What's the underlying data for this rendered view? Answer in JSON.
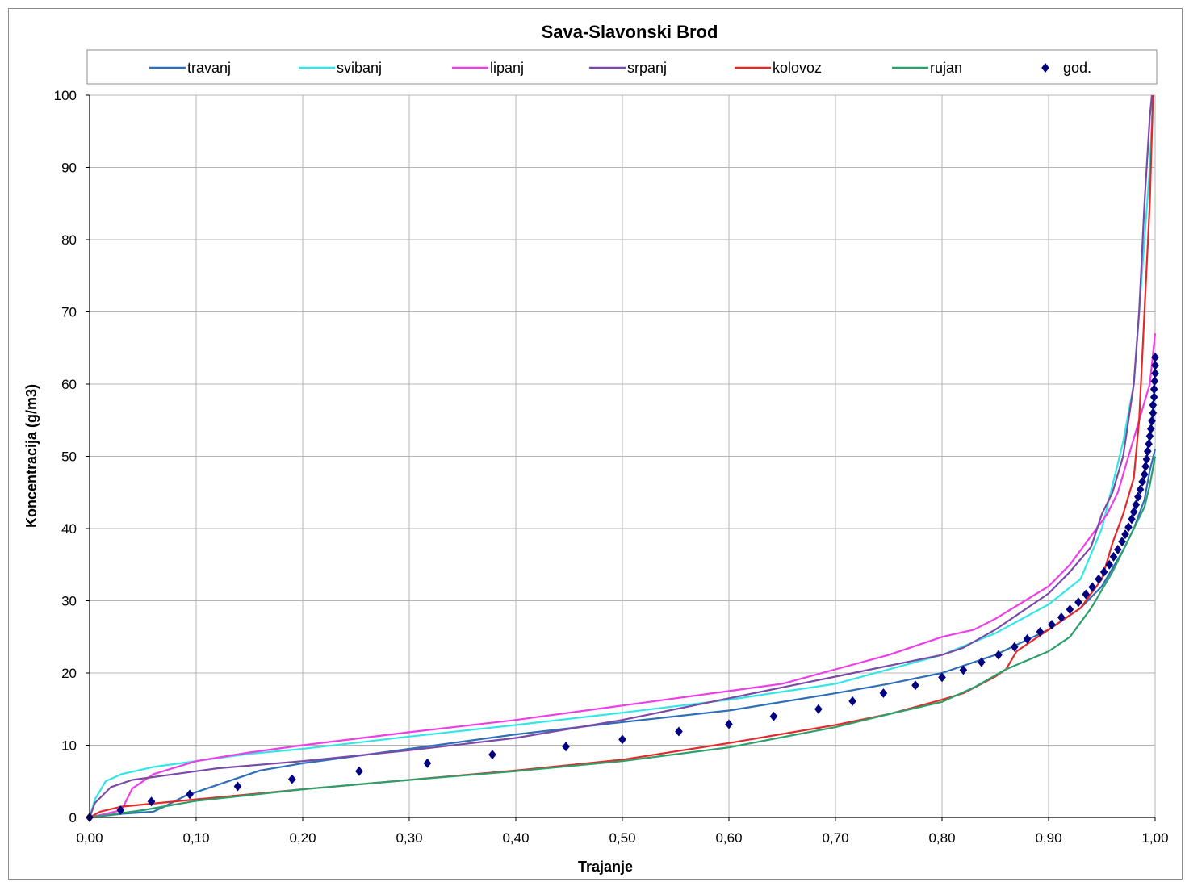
{
  "chart_data": {
    "type": "line",
    "title": "Sava-Slavonski Brod",
    "xlabel": "Trajanje",
    "ylabel": "Koncentracija (g/m3)",
    "xlim": [
      0,
      1
    ],
    "ylim": [
      0,
      100
    ],
    "x_ticks": [
      "0,00",
      "0,10",
      "0,20",
      "0,30",
      "0,40",
      "0,50",
      "0,60",
      "0,70",
      "0,80",
      "0,90",
      "1,00"
    ],
    "y_ticks": [
      "0",
      "10",
      "20",
      "30",
      "40",
      "50",
      "60",
      "70",
      "80",
      "90",
      "100"
    ],
    "grid": true,
    "legend_position": "top",
    "series": [
      {
        "name": "travanj",
        "color": "#2f6fb7",
        "marker": "line",
        "points": [
          [
            0,
            0
          ],
          [
            0.03,
            0.5
          ],
          [
            0.06,
            0.8
          ],
          [
            0.07,
            1.5
          ],
          [
            0.09,
            3
          ],
          [
            0.12,
            4.5
          ],
          [
            0.16,
            6.5
          ],
          [
            0.2,
            7.5
          ],
          [
            0.3,
            9.5
          ],
          [
            0.4,
            11.5
          ],
          [
            0.5,
            13.2
          ],
          [
            0.6,
            14.8
          ],
          [
            0.7,
            17.2
          ],
          [
            0.75,
            18.5
          ],
          [
            0.8,
            20
          ],
          [
            0.85,
            22.5
          ],
          [
            0.9,
            26
          ],
          [
            0.93,
            29
          ],
          [
            0.95,
            32
          ],
          [
            0.97,
            37
          ],
          [
            0.98,
            40
          ],
          [
            0.99,
            44
          ],
          [
            0.995,
            48
          ],
          [
            1.0,
            51
          ]
        ]
      },
      {
        "name": "svibanj",
        "color": "#33e6e6",
        "marker": "line",
        "points": [
          [
            0,
            0
          ],
          [
            0.005,
            2.5
          ],
          [
            0.015,
            5
          ],
          [
            0.03,
            6
          ],
          [
            0.06,
            7
          ],
          [
            0.1,
            7.8
          ],
          [
            0.15,
            8.8
          ],
          [
            0.2,
            9.5
          ],
          [
            0.3,
            11.2
          ],
          [
            0.4,
            12.8
          ],
          [
            0.5,
            14.5
          ],
          [
            0.6,
            16.3
          ],
          [
            0.7,
            18.5
          ],
          [
            0.8,
            22.5
          ],
          [
            0.85,
            25.5
          ],
          [
            0.9,
            29.5
          ],
          [
            0.93,
            33
          ],
          [
            0.95,
            40
          ],
          [
            0.96,
            46
          ],
          [
            0.97,
            52
          ],
          [
            0.98,
            60
          ],
          [
            0.985,
            70
          ],
          [
            0.99,
            80
          ],
          [
            0.995,
            90
          ],
          [
            0.998,
            100
          ]
        ]
      },
      {
        "name": "lipanj",
        "color": "#ee3ee6",
        "marker": "line",
        "points": [
          [
            0,
            0
          ],
          [
            0.03,
            1
          ],
          [
            0.04,
            4
          ],
          [
            0.06,
            6
          ],
          [
            0.1,
            7.8
          ],
          [
            0.15,
            9
          ],
          [
            0.2,
            10
          ],
          [
            0.3,
            11.8
          ],
          [
            0.4,
            13.5
          ],
          [
            0.5,
            15.5
          ],
          [
            0.6,
            17.5
          ],
          [
            0.65,
            18.5
          ],
          [
            0.7,
            20.5
          ],
          [
            0.75,
            22.5
          ],
          [
            0.8,
            25
          ],
          [
            0.83,
            26
          ],
          [
            0.85,
            27.5
          ],
          [
            0.9,
            32
          ],
          [
            0.92,
            35
          ],
          [
            0.94,
            39
          ],
          [
            0.955,
            42
          ],
          [
            0.965,
            45
          ],
          [
            0.975,
            50
          ],
          [
            0.985,
            55
          ],
          [
            0.995,
            60
          ],
          [
            1.0,
            67
          ]
        ]
      },
      {
        "name": "srpanj",
        "color": "#7a4aa6",
        "marker": "line",
        "points": [
          [
            0,
            0
          ],
          [
            0.005,
            2
          ],
          [
            0.02,
            4.2
          ],
          [
            0.04,
            5.2
          ],
          [
            0.08,
            6
          ],
          [
            0.12,
            6.8
          ],
          [
            0.2,
            7.8
          ],
          [
            0.3,
            9.3
          ],
          [
            0.4,
            11
          ],
          [
            0.5,
            13.5
          ],
          [
            0.6,
            16.5
          ],
          [
            0.7,
            19.5
          ],
          [
            0.8,
            22.5
          ],
          [
            0.82,
            23.5
          ],
          [
            0.85,
            26
          ],
          [
            0.9,
            31
          ],
          [
            0.92,
            34
          ],
          [
            0.94,
            37.5
          ],
          [
            0.95,
            42
          ],
          [
            0.96,
            45
          ],
          [
            0.97,
            50
          ],
          [
            0.98,
            60
          ],
          [
            0.985,
            70
          ],
          [
            0.99,
            85
          ],
          [
            0.995,
            97
          ],
          [
            0.997,
            100
          ]
        ]
      },
      {
        "name": "kolovoz",
        "color": "#e32a2a",
        "marker": "line",
        "points": [
          [
            0,
            0
          ],
          [
            0.01,
            0.8
          ],
          [
            0.03,
            1.5
          ],
          [
            0.1,
            2.5
          ],
          [
            0.2,
            3.9
          ],
          [
            0.3,
            5.2
          ],
          [
            0.4,
            6.5
          ],
          [
            0.5,
            8
          ],
          [
            0.6,
            10.3
          ],
          [
            0.7,
            12.8
          ],
          [
            0.75,
            14.3
          ],
          [
            0.8,
            16.3
          ],
          [
            0.82,
            17.2
          ],
          [
            0.85,
            19.5
          ],
          [
            0.86,
            20.5
          ],
          [
            0.87,
            23
          ],
          [
            0.9,
            26
          ],
          [
            0.93,
            29
          ],
          [
            0.95,
            33
          ],
          [
            0.96,
            38
          ],
          [
            0.97,
            42
          ],
          [
            0.98,
            47
          ],
          [
            0.985,
            55
          ],
          [
            0.99,
            70
          ],
          [
            0.995,
            85
          ],
          [
            0.998,
            100
          ]
        ]
      },
      {
        "name": "rujan",
        "color": "#2aa06a",
        "marker": "line",
        "points": [
          [
            0,
            0
          ],
          [
            0.05,
            1
          ],
          [
            0.1,
            2.3
          ],
          [
            0.2,
            3.9
          ],
          [
            0.3,
            5.2
          ],
          [
            0.4,
            6.4
          ],
          [
            0.5,
            7.8
          ],
          [
            0.6,
            9.7
          ],
          [
            0.7,
            12.5
          ],
          [
            0.75,
            14.3
          ],
          [
            0.8,
            16
          ],
          [
            0.83,
            18
          ],
          [
            0.86,
            20.5
          ],
          [
            0.9,
            23
          ],
          [
            0.92,
            25
          ],
          [
            0.94,
            29
          ],
          [
            0.96,
            34
          ],
          [
            0.97,
            37
          ],
          [
            0.98,
            40
          ],
          [
            0.99,
            43
          ],
          [
            0.995,
            46
          ],
          [
            1.0,
            50
          ]
        ]
      },
      {
        "name": "god.",
        "color": "#000080",
        "marker": "diamond",
        "points": [
          [
            0,
            0
          ],
          [
            0.029,
            1
          ],
          [
            0.058,
            2.2
          ],
          [
            0.094,
            3.2
          ],
          [
            0.139,
            4.3
          ],
          [
            0.19,
            5.3
          ],
          [
            0.253,
            6.4
          ],
          [
            0.317,
            7.5
          ],
          [
            0.378,
            8.7
          ],
          [
            0.447,
            9.8
          ],
          [
            0.5,
            10.8
          ],
          [
            0.553,
            11.9
          ],
          [
            0.6,
            12.9
          ],
          [
            0.642,
            14
          ],
          [
            0.684,
            15
          ],
          [
            0.716,
            16.1
          ],
          [
            0.745,
            17.2
          ],
          [
            0.775,
            18.3
          ],
          [
            0.8,
            19.4
          ],
          [
            0.82,
            20.4
          ],
          [
            0.837,
            21.5
          ],
          [
            0.853,
            22.5
          ],
          [
            0.868,
            23.6
          ],
          [
            0.88,
            24.7
          ],
          [
            0.892,
            25.7
          ],
          [
            0.903,
            26.7
          ],
          [
            0.912,
            27.7
          ],
          [
            0.92,
            28.8
          ],
          [
            0.928,
            29.8
          ],
          [
            0.935,
            30.9
          ],
          [
            0.941,
            31.9
          ],
          [
            0.947,
            33
          ],
          [
            0.952,
            34
          ],
          [
            0.957,
            35
          ],
          [
            0.961,
            36.1
          ],
          [
            0.965,
            37.1
          ],
          [
            0.969,
            38.2
          ],
          [
            0.972,
            39.2
          ],
          [
            0.975,
            40.2
          ],
          [
            0.978,
            41.3
          ],
          [
            0.98,
            42.3
          ],
          [
            0.982,
            43.3
          ],
          [
            0.984,
            44.4
          ],
          [
            0.986,
            45.4
          ],
          [
            0.988,
            46.5
          ],
          [
            0.99,
            47.5
          ],
          [
            0.991,
            48.6
          ],
          [
            0.992,
            49.6
          ],
          [
            0.993,
            50.7
          ],
          [
            0.994,
            51.7
          ],
          [
            0.995,
            52.8
          ],
          [
            0.996,
            53.8
          ],
          [
            0.997,
            54.9
          ],
          [
            0.998,
            56
          ],
          [
            0.998,
            57.1
          ],
          [
            0.999,
            58.2
          ],
          [
            0.999,
            59.3
          ],
          [
            0.9995,
            60.4
          ],
          [
            1.0,
            61.5
          ],
          [
            1.0,
            62.6
          ],
          [
            1.0,
            63.7
          ]
        ]
      }
    ]
  }
}
